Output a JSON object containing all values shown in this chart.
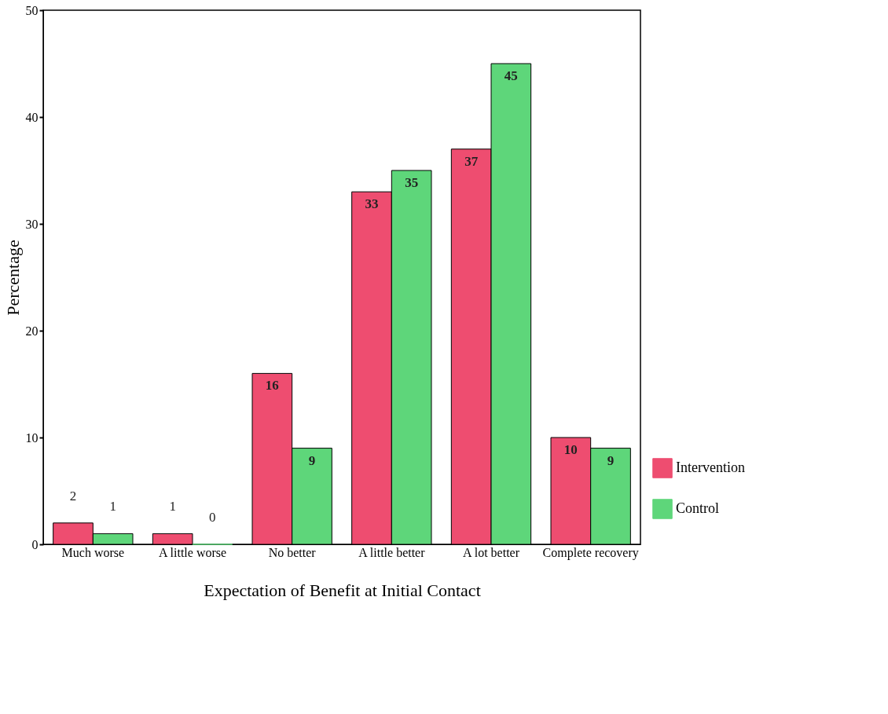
{
  "chart_data": {
    "type": "bar",
    "xlabel": "Expectation of Benefit at Initial Contact",
    "ylabel": "Percentage",
    "categories": [
      "Much worse",
      "A little worse",
      "No better",
      "A little better",
      "A lot better",
      "Complete recovery"
    ],
    "series": [
      {
        "name": "Intervention",
        "color": "#ee4d70",
        "values": [
          2,
          1,
          16,
          33,
          37,
          10
        ]
      },
      {
        "name": "Control",
        "color": "#5ed67a",
        "values": [
          1,
          0,
          9,
          35,
          45,
          9
        ]
      }
    ],
    "ylim": [
      0,
      50
    ],
    "yticks": [
      0,
      10,
      20,
      30,
      40,
      50
    ],
    "grid": false,
    "legend": "bottom right",
    "data_labels": true
  }
}
